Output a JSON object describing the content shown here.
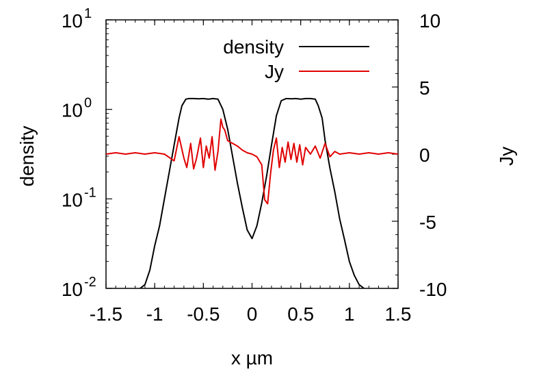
{
  "chart_data": {
    "type": "line",
    "title": "",
    "xlabel": "x µm",
    "ylabel_left": "density",
    "ylabel_right": "Jy",
    "xlim": [
      -1.5,
      1.5
    ],
    "ylim_left": [
      0.01,
      10
    ],
    "ylim_right": [
      -10,
      10
    ],
    "left_scale": "log",
    "grid": false,
    "legend_position": "top-right",
    "x_ticks": [
      {
        "value": -1.5,
        "label": "-1.5"
      },
      {
        "value": -1,
        "label": "-1"
      },
      {
        "value": -0.5,
        "label": "-0.5"
      },
      {
        "value": 0,
        "label": "0"
      },
      {
        "value": 0.5,
        "label": "0.5"
      },
      {
        "value": 1,
        "label": "1"
      },
      {
        "value": 1.5,
        "label": "1.5"
      }
    ],
    "y_left_ticks": [
      {
        "value": 10,
        "label_base": "10",
        "label_exp": "1"
      },
      {
        "value": 1,
        "label_base": "10",
        "label_exp": "0"
      },
      {
        "value": 0.1,
        "label_base": "10",
        "label_exp": "-1"
      },
      {
        "value": 0.01,
        "label_base": "10",
        "label_exp": "-2"
      }
    ],
    "y_right_ticks": [
      {
        "value": 10,
        "label": "10"
      },
      {
        "value": 5,
        "label": "5"
      },
      {
        "value": 0,
        "label": "0"
      },
      {
        "value": -5,
        "label": "-5"
      },
      {
        "value": -10,
        "label": "-10"
      }
    ],
    "series": [
      {
        "name": "density",
        "axis": "left",
        "color": "#000000",
        "x": [
          -1.15,
          -1.1,
          -1.05,
          -1.0,
          -0.95,
          -0.9,
          -0.85,
          -0.8,
          -0.75,
          -0.72,
          -0.68,
          -0.65,
          -0.6,
          -0.55,
          -0.5,
          -0.45,
          -0.4,
          -0.35,
          -0.3,
          -0.25,
          -0.2,
          -0.15,
          -0.1,
          -0.05,
          0.0,
          0.05,
          0.1,
          0.15,
          0.2,
          0.25,
          0.3,
          0.35,
          0.4,
          0.45,
          0.5,
          0.55,
          0.6,
          0.65,
          0.68,
          0.72,
          0.75,
          0.8,
          0.85,
          0.9,
          0.95,
          1.0,
          1.05,
          1.1,
          1.15
        ],
        "values": [
          0.01,
          0.011,
          0.016,
          0.03,
          0.05,
          0.1,
          0.2,
          0.4,
          0.8,
          1.1,
          1.3,
          1.32,
          1.32,
          1.31,
          1.32,
          1.3,
          1.32,
          1.3,
          1.0,
          0.6,
          0.3,
          0.15,
          0.08,
          0.045,
          0.036,
          0.05,
          0.09,
          0.18,
          0.4,
          0.85,
          1.25,
          1.32,
          1.31,
          1.32,
          1.3,
          1.32,
          1.32,
          1.3,
          1.1,
          0.8,
          0.45,
          0.22,
          0.12,
          0.06,
          0.035,
          0.02,
          0.014,
          0.011,
          0.01
        ]
      },
      {
        "name": "Jy",
        "axis": "right",
        "color": "#e00000",
        "x": [
          -1.5,
          -1.4,
          -1.3,
          -1.2,
          -1.1,
          -1.0,
          -0.9,
          -0.8,
          -0.75,
          -0.7,
          -0.67,
          -0.63,
          -0.6,
          -0.57,
          -0.53,
          -0.5,
          -0.47,
          -0.44,
          -0.41,
          -0.38,
          -0.35,
          -0.32,
          -0.3,
          -0.28,
          -0.25,
          -0.2,
          -0.15,
          -0.1,
          -0.05,
          0.0,
          0.05,
          0.1,
          0.13,
          0.16,
          0.19,
          0.22,
          0.25,
          0.28,
          0.31,
          0.34,
          0.37,
          0.4,
          0.43,
          0.46,
          0.49,
          0.52,
          0.55,
          0.6,
          0.65,
          0.7,
          0.75,
          0.8,
          0.85,
          0.9,
          1.0,
          1.1,
          1.2,
          1.3,
          1.4,
          1.5
        ],
        "values": [
          0.0,
          0.1,
          0.0,
          0.1,
          0.0,
          0.1,
          0.0,
          -0.5,
          1.3,
          -0.3,
          -1.0,
          0.8,
          -1.1,
          -0.3,
          1.2,
          -1.0,
          0.6,
          -0.3,
          1.3,
          -1.2,
          0.2,
          2.6,
          2.0,
          1.8,
          1.0,
          0.8,
          0.6,
          0.3,
          0.1,
          0.0,
          -0.2,
          -0.8,
          -3.4,
          -3.7,
          -1.5,
          0.3,
          1.2,
          -1.0,
          0.5,
          -0.6,
          0.9,
          -0.4,
          0.8,
          -0.6,
          0.7,
          -0.8,
          0.5,
          0.0,
          0.6,
          -0.3,
          0.8,
          -0.2,
          0.2,
          0.0,
          0.1,
          0.0,
          0.1,
          0.0,
          0.1,
          0.0
        ]
      }
    ]
  }
}
